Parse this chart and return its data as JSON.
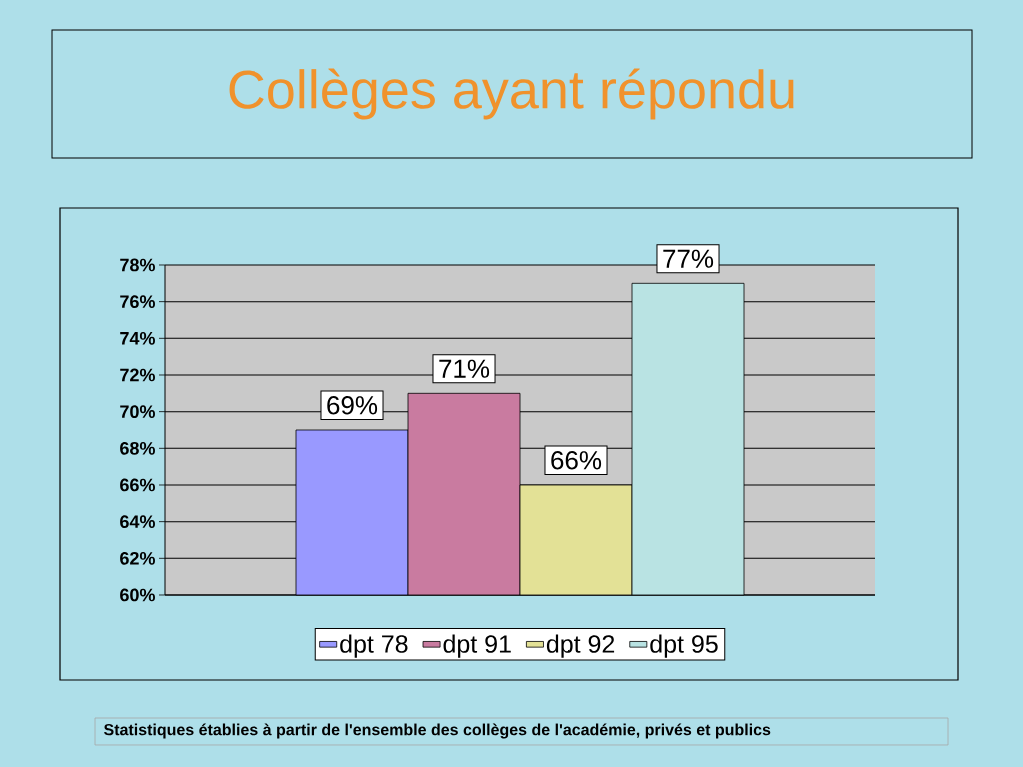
{
  "chart_data": {
    "type": "bar",
    "title": "Collèges ayant répondu",
    "categories": [
      null
    ],
    "series": [
      {
        "name": "dpt 78",
        "color": "#9999ff",
        "values": [
          69
        ],
        "value_labels": [
          "69%"
        ]
      },
      {
        "name": "dpt 91",
        "color": "#c97ba0",
        "values": [
          71
        ],
        "value_labels": [
          "71%"
        ]
      },
      {
        "name": "dpt 92",
        "color": "#e3e196",
        "values": [
          66
        ],
        "value_labels": [
          "66%"
        ]
      },
      {
        "name": "dpt 95",
        "color": "#b9e3e3",
        "values": [
          77
        ],
        "value_labels": [
          "77%"
        ]
      }
    ],
    "ylim": [
      60,
      78
    ],
    "yticks": [
      {
        "value": 60,
        "label": "60%"
      },
      {
        "value": 62,
        "label": "62%"
      },
      {
        "value": 64,
        "label": "64%"
      },
      {
        "value": 66,
        "label": "66%"
      },
      {
        "value": 68,
        "label": "68%"
      },
      {
        "value": 70,
        "label": "70%"
      },
      {
        "value": 72,
        "label": "72%"
      },
      {
        "value": 74,
        "label": "74%"
      },
      {
        "value": 76,
        "label": "76%"
      },
      {
        "value": 78,
        "label": "78%"
      }
    ],
    "grid": "y",
    "legend": "bottom",
    "annotations": [
      "Statistiques établies à partir de l'ensemble des collèges de l'académie, privés et publics"
    ]
  }
}
